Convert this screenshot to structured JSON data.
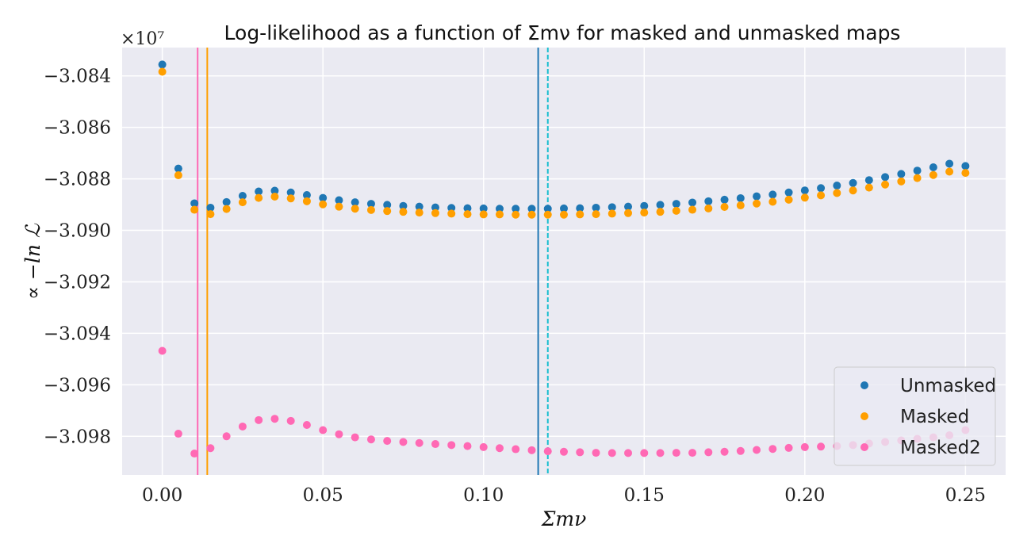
{
  "chart_data": {
    "type": "scatter",
    "title": "Log-likelihood as a function of Σmν for masked and unmasked maps",
    "xlabel": "Σmν",
    "ylabel": "∝ −ln ℒ",
    "y_multiplier": "×10⁷",
    "xlim": [
      -0.0125,
      0.2625
    ],
    "ylim": [
      -3.0995,
      -3.0829
    ],
    "xticks": [
      0.0,
      0.05,
      0.1,
      0.15,
      0.2,
      0.25
    ],
    "xtick_labels": [
      "0.00",
      "0.05",
      "0.10",
      "0.15",
      "0.20",
      "0.25"
    ],
    "yticks": [
      -3.084,
      -3.086,
      -3.088,
      -3.09,
      -3.092,
      -3.094,
      -3.096,
      -3.098
    ],
    "ytick_labels": [
      "−3.084",
      "−3.086",
      "−3.088",
      "−3.090",
      "−3.092",
      "−3.094",
      "−3.096",
      "−3.098"
    ],
    "grid": true,
    "legend_position": "lower-right",
    "x": [
      0.0,
      0.005,
      0.01,
      0.015,
      0.02,
      0.025,
      0.03,
      0.035,
      0.04,
      0.045,
      0.05,
      0.055,
      0.06,
      0.065,
      0.07,
      0.075,
      0.08,
      0.085,
      0.09,
      0.095,
      0.1,
      0.105,
      0.11,
      0.115,
      0.12,
      0.125,
      0.13,
      0.135,
      0.14,
      0.145,
      0.15,
      0.155,
      0.16,
      0.165,
      0.17,
      0.175,
      0.18,
      0.185,
      0.19,
      0.195,
      0.2,
      0.205,
      0.21,
      0.215,
      0.22,
      0.225,
      0.23,
      0.235,
      0.24,
      0.245,
      0.25
    ],
    "series": [
      {
        "name": "Unmasked",
        "color": "#1f77b4",
        "values": [
          -3.08356,
          -3.0876,
          -3.08895,
          -3.08912,
          -3.0889,
          -3.08866,
          -3.08849,
          -3.08846,
          -3.08853,
          -3.08863,
          -3.08874,
          -3.08883,
          -3.08891,
          -3.08897,
          -3.08901,
          -3.08905,
          -3.08908,
          -3.08911,
          -3.08913,
          -3.08914,
          -3.08915,
          -3.08916,
          -3.08916,
          -3.08916,
          -3.08916,
          -3.08915,
          -3.08914,
          -3.08912,
          -3.0891,
          -3.08908,
          -3.08905,
          -3.08901,
          -3.08897,
          -3.08892,
          -3.08887,
          -3.08881,
          -3.08875,
          -3.08868,
          -3.08861,
          -3.08853,
          -3.08845,
          -3.08836,
          -3.08826,
          -3.08816,
          -3.08805,
          -3.08793,
          -3.08781,
          -3.08768,
          -3.08755,
          -3.08741,
          -3.0875
        ]
      },
      {
        "name": "Masked",
        "color": "#ff9f00",
        "values": [
          -3.08384,
          -3.08786,
          -3.0892,
          -3.08937,
          -3.08917,
          -3.08891,
          -3.08874,
          -3.08869,
          -3.08876,
          -3.08887,
          -3.08899,
          -3.08908,
          -3.08916,
          -3.08921,
          -3.08925,
          -3.08928,
          -3.08931,
          -3.08933,
          -3.08935,
          -3.08937,
          -3.08938,
          -3.08938,
          -3.08939,
          -3.08939,
          -3.08939,
          -3.08939,
          -3.08938,
          -3.08937,
          -3.08935,
          -3.08933,
          -3.08931,
          -3.08928,
          -3.08924,
          -3.0892,
          -3.08915,
          -3.08909,
          -3.08903,
          -3.08896,
          -3.08889,
          -3.08881,
          -3.08873,
          -3.08864,
          -3.08855,
          -3.08845,
          -3.08834,
          -3.08822,
          -3.0881,
          -3.08797,
          -3.08785,
          -3.08772,
          -3.08777
        ]
      },
      {
        "name": "Masked2",
        "color": "#ff69b4",
        "values": [
          -3.09468,
          -3.0979,
          -3.09867,
          -3.09846,
          -3.098,
          -3.09762,
          -3.09737,
          -3.09732,
          -3.0974,
          -3.09756,
          -3.09776,
          -3.09792,
          -3.09804,
          -3.09812,
          -3.09818,
          -3.09822,
          -3.09826,
          -3.0983,
          -3.09834,
          -3.09838,
          -3.09842,
          -3.09846,
          -3.0985,
          -3.09854,
          -3.09858,
          -3.0986,
          -3.09862,
          -3.09864,
          -3.09865,
          -3.09865,
          -3.09865,
          -3.09865,
          -3.09864,
          -3.09864,
          -3.09862,
          -3.0986,
          -3.09857,
          -3.09853,
          -3.09849,
          -3.09845,
          -3.09842,
          -3.0984,
          -3.09838,
          -3.09834,
          -3.09828,
          -3.09822,
          -3.09816,
          -3.0981,
          -3.09804,
          -3.09796,
          -3.09776
        ]
      }
    ],
    "vertical_lines": [
      {
        "x": 0.011,
        "color": "#ff69b4",
        "style": "solid"
      },
      {
        "x": 0.014,
        "color": "#ff9f00",
        "style": "solid"
      },
      {
        "x": 0.117,
        "color": "#1f77b4",
        "style": "solid"
      },
      {
        "x": 0.12,
        "color": "#17becf",
        "style": "dashed"
      }
    ],
    "colors": {
      "background": "#eaeaf2",
      "grid": "#ffffff"
    }
  }
}
